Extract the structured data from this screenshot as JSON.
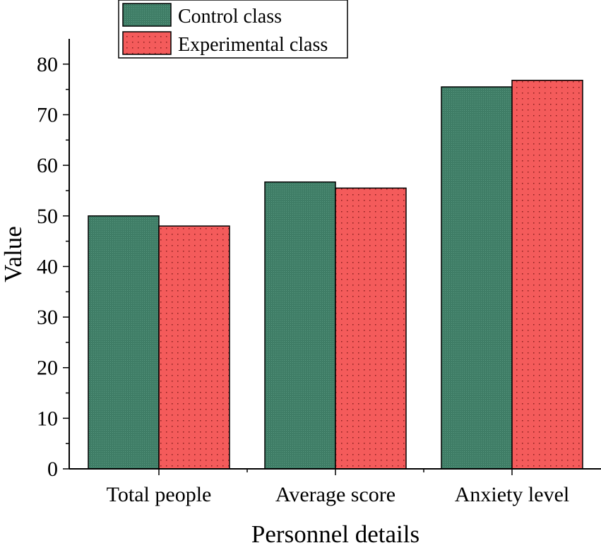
{
  "chart_data": {
    "type": "bar",
    "title": "",
    "xlabel": "Personnel details",
    "ylabel": "Value",
    "categories": [
      "Total people",
      "Average score",
      "Anxiety level"
    ],
    "series": [
      {
        "name": "Control class",
        "values": [
          50,
          56.7,
          75.5
        ],
        "color": "#3f7d66",
        "pattern": "fine-hatch"
      },
      {
        "name": "Experimental class",
        "values": [
          48,
          55.5,
          76.8
        ],
        "color": "#f45b5b",
        "pattern": "dots"
      }
    ],
    "ylim": [
      0,
      85
    ],
    "yticks": [
      0,
      10,
      20,
      30,
      40,
      50,
      60,
      70,
      80
    ],
    "grid": false,
    "legend_position": "top-left"
  }
}
